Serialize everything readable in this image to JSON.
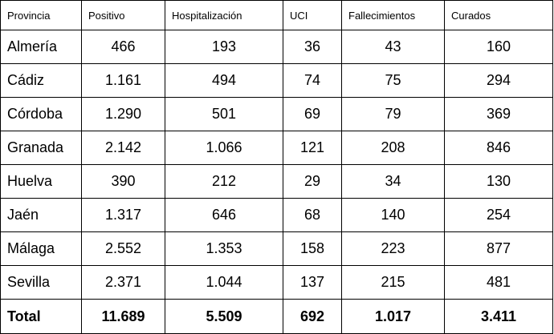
{
  "headers": [
    "Provincia",
    "Positivo",
    "Hospitalización",
    "UCI",
    "Fallecimientos",
    "Curados"
  ],
  "rows": [
    [
      "Almería",
      "466",
      "193",
      "36",
      "43",
      "160"
    ],
    [
      "Cádiz",
      "1.161",
      "494",
      "74",
      "75",
      "294"
    ],
    [
      "Córdoba",
      "1.290",
      "501",
      "69",
      "79",
      "369"
    ],
    [
      "Granada",
      "2.142",
      "1.066",
      "121",
      "208",
      "846"
    ],
    [
      "Huelva",
      "390",
      "212",
      "29",
      "34",
      "130"
    ],
    [
      "Jaén",
      "1.317",
      "646",
      "68",
      "140",
      "254"
    ],
    [
      "Málaga",
      "2.552",
      "1.353",
      "158",
      "223",
      "877"
    ],
    [
      "Sevilla",
      "2.371",
      "1.044",
      "137",
      "215",
      "481"
    ]
  ],
  "total": [
    "Total",
    "11.689",
    "5.509",
    "692",
    "1.017",
    "3.411"
  ]
}
